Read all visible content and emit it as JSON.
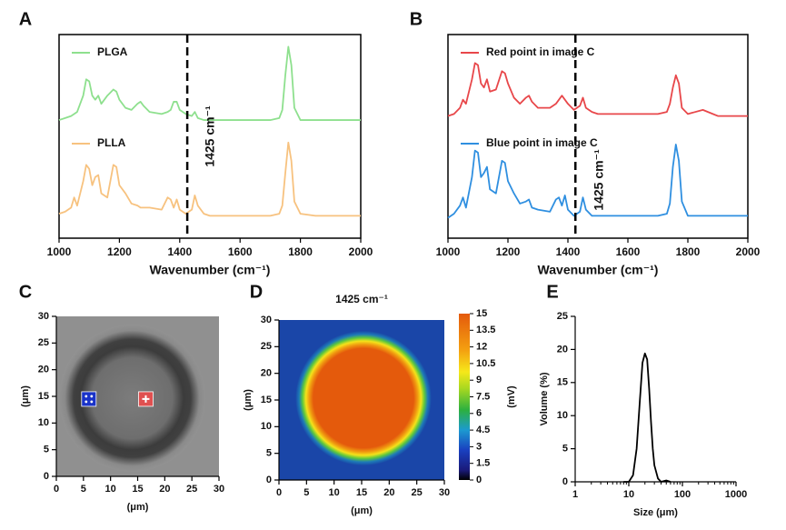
{
  "chart_data": [
    {
      "type": "line",
      "panel": "A",
      "x": [
        1000,
        1020,
        1040,
        1050,
        1060,
        1080,
        1090,
        1100,
        1110,
        1120,
        1130,
        1140,
        1160,
        1180,
        1190,
        1200,
        1220,
        1240,
        1260,
        1270,
        1280,
        1300,
        1340,
        1360,
        1370,
        1380,
        1390,
        1400,
        1420,
        1440,
        1450,
        1460,
        1480,
        1500,
        1600,
        1700,
        1730,
        1740,
        1750,
        1760,
        1770,
        1780,
        1800,
        1850,
        1900,
        2000
      ],
      "series": [
        {
          "name": "PLGA",
          "color": "#8ee08e",
          "values": [
            58,
            59,
            60,
            61,
            62,
            70,
            78,
            77,
            70,
            68,
            70,
            66,
            70,
            73,
            72,
            68,
            64,
            63,
            66,
            67,
            65,
            62,
            61,
            62,
            63,
            67,
            67,
            63,
            61,
            60,
            62,
            59,
            58,
            58,
            58,
            58,
            59,
            63,
            80,
            94,
            85,
            64,
            58,
            58,
            58,
            58
          ]
        },
        {
          "name": "PLLA",
          "color": "#f7c27f",
          "values": [
            12,
            13,
            15,
            20,
            16,
            28,
            36,
            34,
            26,
            30,
            31,
            22,
            20,
            36,
            35,
            26,
            22,
            17,
            16,
            15,
            15,
            15,
            14,
            20,
            19,
            15,
            19,
            14,
            12,
            14,
            21,
            16,
            12,
            11,
            11,
            11,
            12,
            16,
            32,
            47,
            38,
            18,
            12,
            11,
            11,
            11
          ]
        }
      ],
      "xlim": [
        1000,
        2000
      ],
      "xticks": [
        1000,
        1200,
        1400,
        1600,
        1800,
        2000
      ],
      "ylim": [
        0,
        100
      ],
      "xlabel": "Wavenumber (cm⁻¹)",
      "marker_x": 1425,
      "marker_label": "1425 cm⁻¹"
    },
    {
      "type": "line",
      "panel": "B",
      "x": [
        1000,
        1020,
        1040,
        1050,
        1060,
        1080,
        1090,
        1100,
        1110,
        1120,
        1130,
        1140,
        1160,
        1180,
        1190,
        1200,
        1220,
        1240,
        1260,
        1270,
        1280,
        1300,
        1340,
        1360,
        1370,
        1380,
        1390,
        1400,
        1420,
        1440,
        1450,
        1460,
        1480,
        1500,
        1600,
        1700,
        1730,
        1740,
        1750,
        1760,
        1770,
        1780,
        1800,
        1850,
        1900,
        2000
      ],
      "series": [
        {
          "name": "Red point in image C",
          "color": "#e8474a",
          "values": [
            60,
            61,
            64,
            68,
            66,
            78,
            86,
            85,
            76,
            74,
            78,
            72,
            73,
            82,
            81,
            76,
            69,
            66,
            69,
            70,
            67,
            64,
            64,
            66,
            68,
            70,
            68,
            66,
            63,
            65,
            69,
            64,
            62,
            61,
            61,
            61,
            62,
            66,
            74,
            80,
            76,
            64,
            61,
            63,
            60,
            60
          ]
        },
        {
          "name": "Blue point in image C",
          "color": "#2f8fe0",
          "values": [
            10,
            12,
            16,
            20,
            15,
            30,
            43,
            42,
            30,
            32,
            35,
            24,
            22,
            38,
            37,
            28,
            22,
            17,
            18,
            19,
            15,
            14,
            13,
            19,
            20,
            16,
            21,
            14,
            11,
            13,
            20,
            14,
            11,
            11,
            11,
            11,
            12,
            17,
            35,
            46,
            38,
            18,
            11,
            11,
            11,
            11
          ]
        }
      ],
      "xlim": [
        1000,
        2000
      ],
      "xticks": [
        1000,
        1200,
        1400,
        1600,
        1800,
        2000
      ],
      "ylim": [
        0,
        100
      ],
      "xlabel": "Wavenumber (cm⁻¹)",
      "marker_x": 1425,
      "marker_label": "1425 cm⁻¹"
    },
    {
      "type": "scatter",
      "panel": "C",
      "series": [
        {
          "color": "#1a33c8",
          "x": [
            6
          ],
          "values": [
            14.5
          ]
        },
        {
          "color": "#e05050",
          "x": [
            16.5
          ],
          "values": [
            14.5
          ]
        }
      ],
      "xlim": [
        0,
        30
      ],
      "ylim": [
        0,
        30
      ],
      "xticks": [
        0,
        5,
        10,
        15,
        20,
        25,
        30
      ],
      "yticks": [
        0,
        5,
        10,
        15,
        20,
        25,
        30
      ],
      "xlabel": "(μm)",
      "ylabel": "(μm)"
    },
    {
      "type": "heatmap",
      "panel": "D",
      "title": "1425 cm⁻¹",
      "xlim": [
        0,
        30
      ],
      "ylim": [
        0,
        30
      ],
      "xticks": [
        0,
        5,
        10,
        15,
        20,
        25,
        30
      ],
      "yticks": [
        0,
        5,
        10,
        15,
        20,
        25,
        30
      ],
      "xlabel": "(μm)",
      "ylabel": "(μm)",
      "colorbar_lim": [
        0,
        15
      ],
      "colorbar_ticks": [
        0,
        1.5,
        3,
        4.5,
        6,
        7.5,
        9,
        10.5,
        12,
        13.5,
        15
      ],
      "colorbar_label": "(mV)"
    },
    {
      "type": "line",
      "panel": "E",
      "log_x": true,
      "x": [
        8,
        10,
        12,
        14,
        16,
        18,
        20,
        22,
        24,
        26,
        28,
        30,
        35,
        40,
        50,
        60
      ],
      "values": [
        0,
        0,
        1,
        5,
        12,
        18,
        19.4,
        18.5,
        14,
        9,
        5,
        2.5,
        0.5,
        0,
        0.2,
        0
      ],
      "color": "#000000",
      "xlim": [
        1,
        1000
      ],
      "xticks": [
        1,
        10,
        100,
        1000
      ],
      "ylim": [
        0,
        25
      ],
      "yticks": [
        0,
        5,
        10,
        15,
        20,
        25
      ],
      "xlabel": "Size (μm)",
      "ylabel": "Volume (%)"
    }
  ]
}
